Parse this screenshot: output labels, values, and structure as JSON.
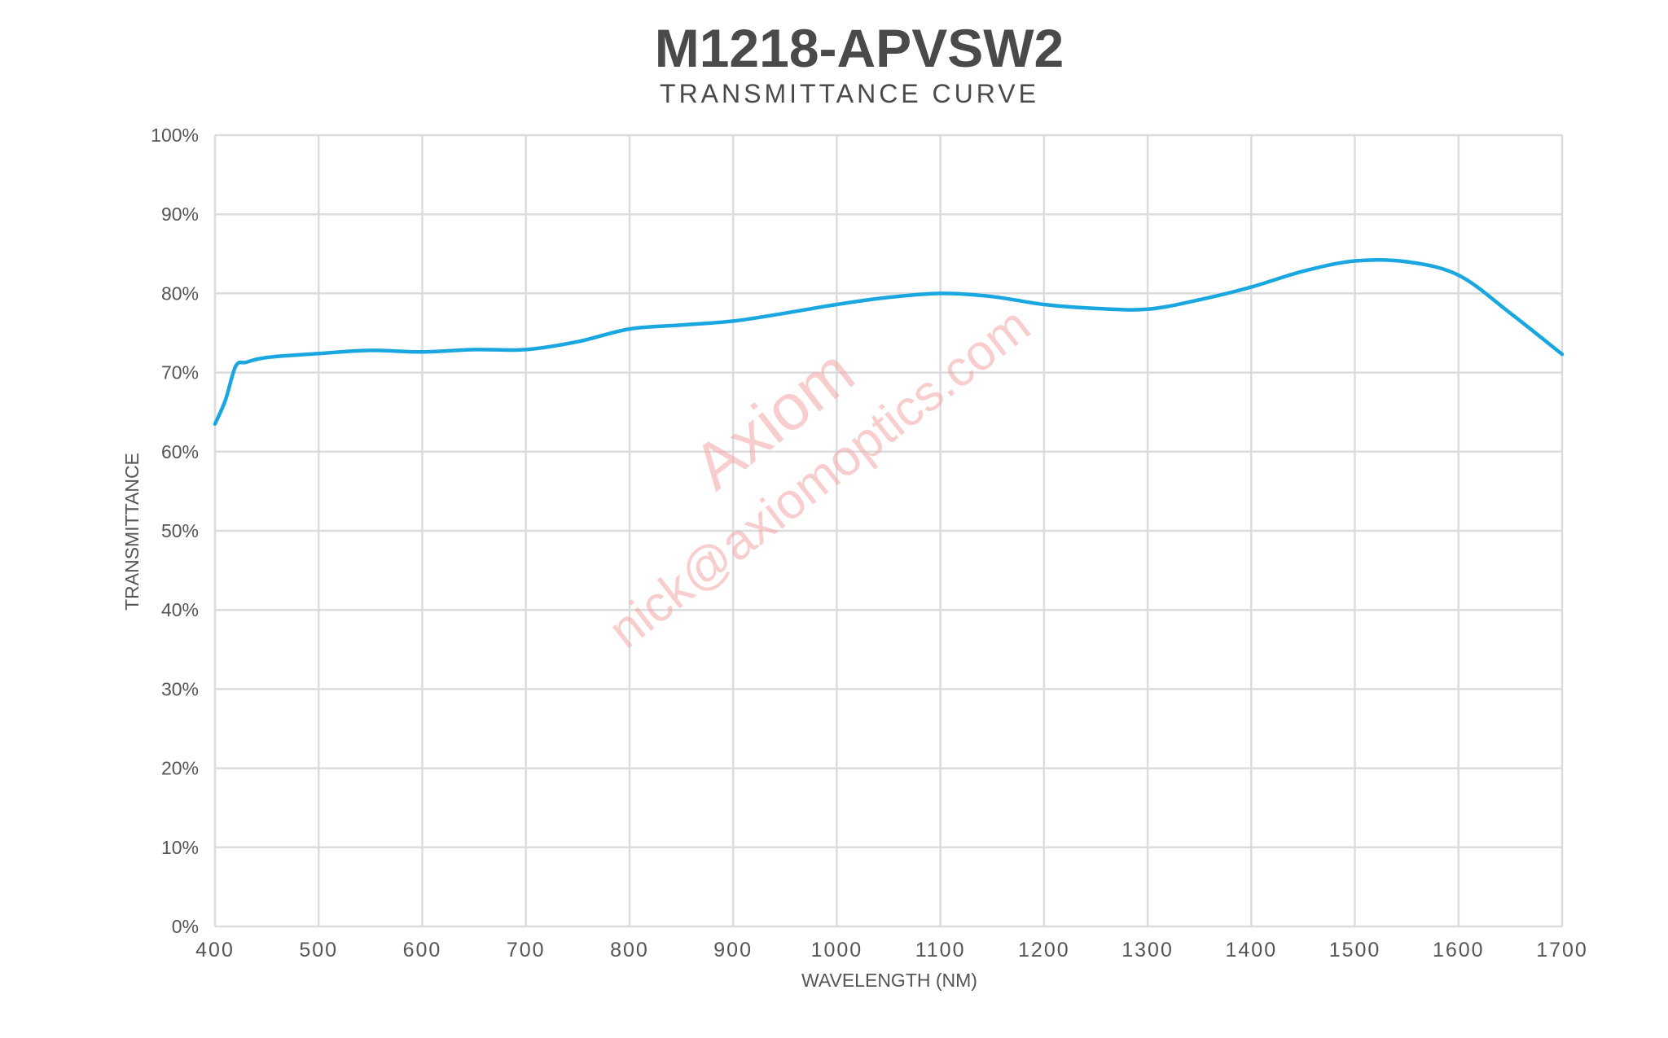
{
  "chart_data": {
    "type": "line",
    "title": "M1218-APVSW2",
    "subtitle": "TRANSMITTANCE CURVE",
    "xlabel": "WAVELENGTH (NM)",
    "ylabel": "TRANSMITTANCE",
    "xlim": [
      400,
      1700
    ],
    "ylim": [
      0,
      100
    ],
    "xticks": [
      "400",
      "500",
      "600",
      "700",
      "800",
      "900",
      "1000",
      "1100",
      "1200",
      "1300",
      "1400",
      "1500",
      "1600",
      "1700"
    ],
    "yticks": [
      "0%",
      "10%",
      "20%",
      "30%",
      "40%",
      "50%",
      "60%",
      "70%",
      "80%",
      "90%",
      "100%"
    ],
    "grid": true,
    "series": [
      {
        "color": "#1aa7e0",
        "x": [
          400,
          410,
          420,
          430,
          450,
          500,
          550,
          600,
          650,
          700,
          750,
          800,
          850,
          900,
          950,
          1000,
          1050,
          1100,
          1150,
          1200,
          1250,
          1300,
          1350,
          1400,
          1450,
          1500,
          1550,
          1600,
          1650,
          1700
        ],
        "y": [
          63.5,
          66.5,
          70.8,
          71.3,
          71.9,
          72.4,
          72.8,
          72.6,
          72.9,
          72.9,
          73.9,
          75.5,
          76.0,
          76.5,
          77.5,
          78.6,
          79.5,
          80.0,
          79.6,
          78.6,
          78.1,
          78.0,
          79.2,
          80.8,
          82.8,
          84.1,
          84.0,
          82.3,
          77.5,
          72.3
        ]
      }
    ]
  },
  "watermark": {
    "brand": "Axiom",
    "email": "nick@axiomoptics.com"
  }
}
